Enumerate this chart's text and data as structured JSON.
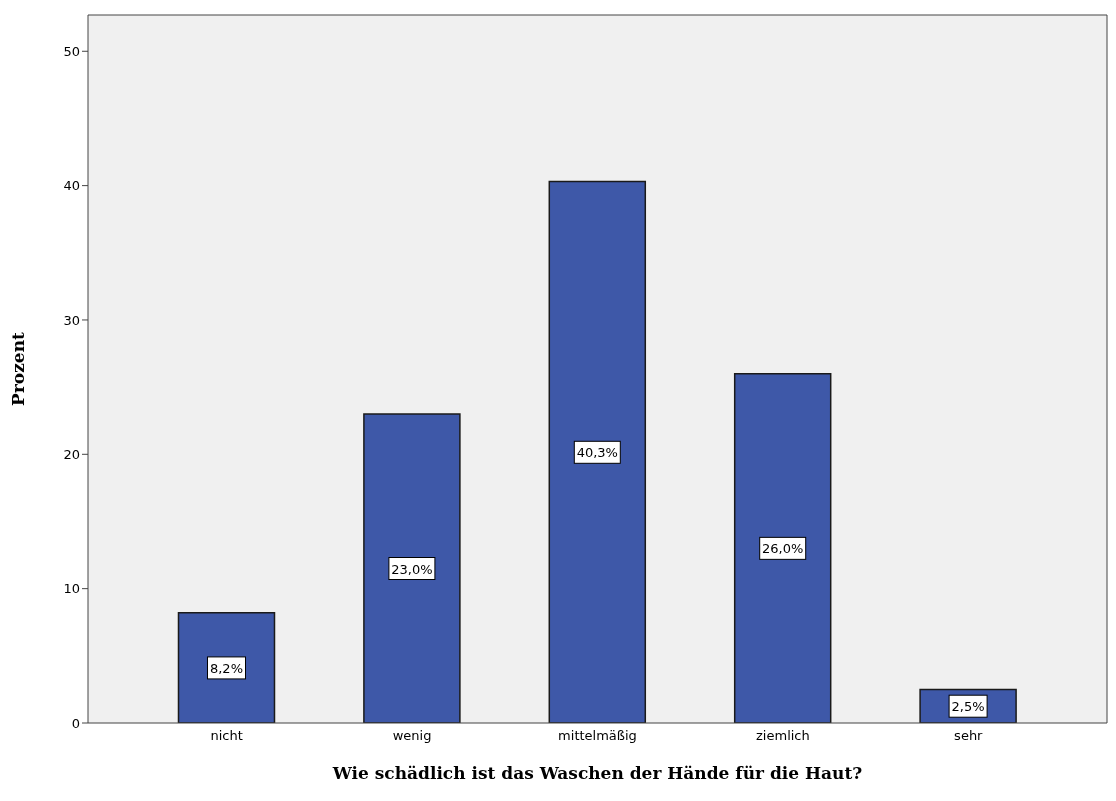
{
  "chart_data": {
    "type": "bar",
    "xlabel": "Wie schädlich ist das Waschen der Hände für die Haut?",
    "ylabel": "Prozent",
    "categories": [
      "nicht",
      "wenig",
      "mittelmäßig",
      "ziemlich",
      "sehr"
    ],
    "values": [
      8.2,
      23.0,
      40.3,
      26.0,
      2.5
    ],
    "value_labels": [
      "8,2%",
      "23,0%",
      "40,3%",
      "26,0%",
      "2,5%"
    ],
    "color": "#3e58a8",
    "ylim": [
      0,
      52.7
    ],
    "yticks": [
      0,
      10,
      20,
      30,
      40,
      50
    ],
    "grid": false
  }
}
